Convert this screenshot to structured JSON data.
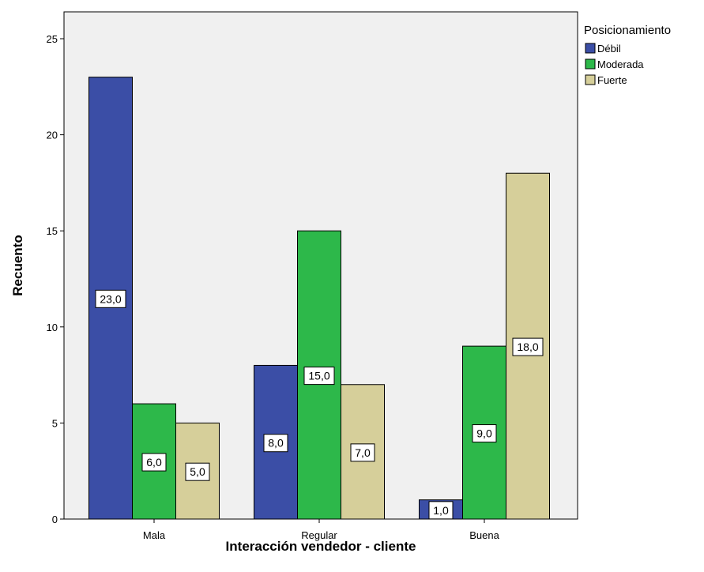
{
  "chart_data": {
    "type": "bar",
    "title": "",
    "xlabel": "Interacción vendedor - cliente",
    "ylabel": "Recuento",
    "categories": [
      "Mala",
      "Regular",
      "Buena"
    ],
    "ylim": [
      0,
      26
    ],
    "yticks": [
      0,
      5,
      10,
      15,
      20,
      25
    ],
    "grid": false,
    "legend": {
      "title": "Posicionamiento",
      "placement": "right"
    },
    "series": [
      {
        "name": "Débil",
        "color": "#3b4ea6",
        "values": [
          23,
          8,
          1
        ],
        "labels": [
          "23,0",
          "8,0",
          "1,0"
        ]
      },
      {
        "name": "Moderada",
        "color": "#2db84a",
        "values": [
          6,
          15,
          9
        ],
        "labels": [
          "6,0",
          "15,0",
          "9,0"
        ]
      },
      {
        "name": "Fuerte",
        "color": "#d6cf9a",
        "values": [
          5,
          7,
          18
        ],
        "labels": [
          "5,0",
          "7,0",
          "18,0"
        ]
      }
    ]
  }
}
